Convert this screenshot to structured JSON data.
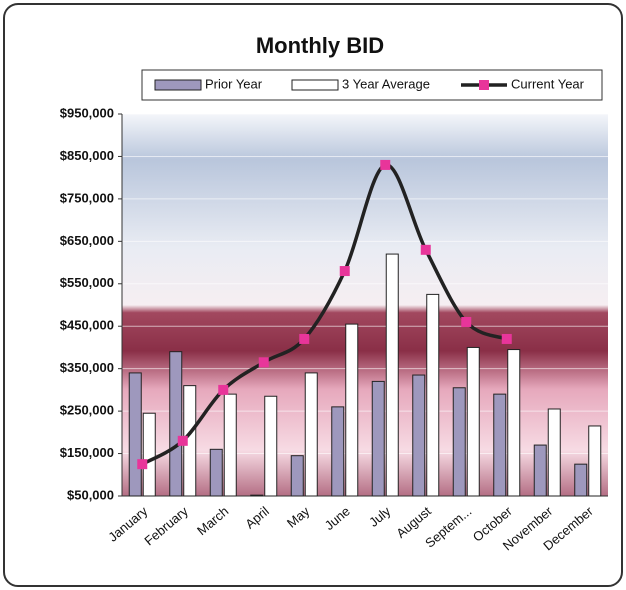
{
  "chart_data": {
    "type": "bar-line",
    "title": "Monthly BID",
    "categories": [
      "January",
      "February",
      "March",
      "April",
      "May",
      "June",
      "July",
      "August",
      "Septem...",
      "October",
      "November",
      "December"
    ],
    "series": [
      {
        "name": "Prior Year",
        "type": "bar",
        "color": "#9e98bd",
        "values": [
          340000,
          390000,
          160000,
          52000,
          145000,
          260000,
          320000,
          335000,
          305000,
          290000,
          170000,
          125000
        ]
      },
      {
        "name": "3 Year Average",
        "type": "bar",
        "color": "#ffffff",
        "values": [
          245000,
          310000,
          290000,
          285000,
          340000,
          455000,
          620000,
          525000,
          400000,
          395000,
          255000,
          215000
        ]
      },
      {
        "name": "Current Year",
        "type": "line",
        "color": "#222222",
        "marker_color": "#e8359a",
        "values": [
          125000,
          180000,
          300000,
          365000,
          420000,
          580000,
          830000,
          630000,
          460000,
          420000,
          null,
          null
        ]
      }
    ],
    "ylim": [
      50000,
      950000
    ],
    "yticks": [
      {
        "value": 50000,
        "label": "$50,000"
      },
      {
        "value": 150000,
        "label": "$150,000"
      },
      {
        "value": 250000,
        "label": "$250,000"
      },
      {
        "value": 350000,
        "label": "$350,000"
      },
      {
        "value": 450000,
        "label": "$450,000"
      },
      {
        "value": 550000,
        "label": "$550,000"
      },
      {
        "value": 650000,
        "label": "$650,000"
      },
      {
        "value": 750000,
        "label": "$750,000"
      },
      {
        "value": 850000,
        "label": "$850,000"
      },
      {
        "value": 950000,
        "label": "$950,000"
      }
    ],
    "grid": true,
    "legend": "top"
  }
}
